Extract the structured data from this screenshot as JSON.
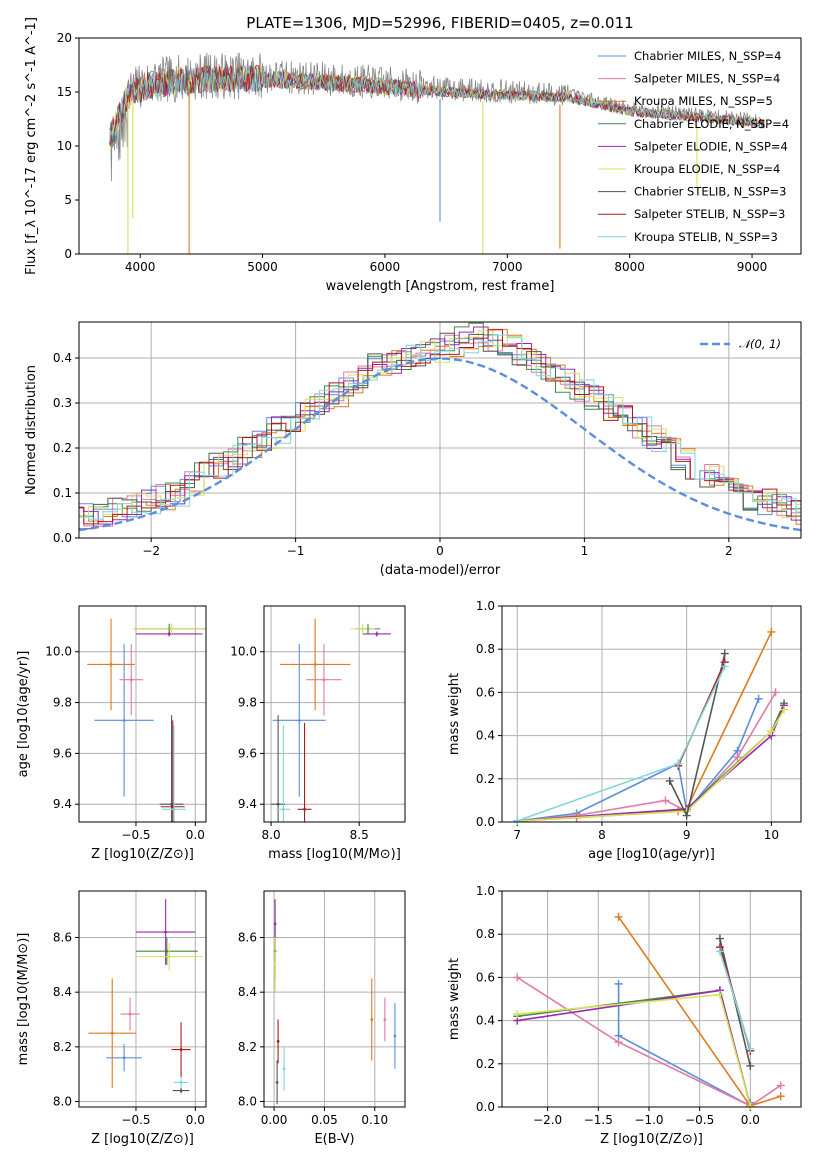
{
  "figure_title": "PLATE=1306, MJD=52996, FIBERID=0405, z=0.011",
  "colors": {
    "chabrier_miles": "#5b8fdc",
    "salpeter_miles": "#e07aa9",
    "kroupa_miles": "#e07a20",
    "chabrier_elodie": "#3f8a4a",
    "salpeter_elodie": "#9b28b0",
    "kroupa_elodie": "#d9e05a",
    "chabrier_stelib": "#555555",
    "salpeter_stelib": "#b01818",
    "kroupa_stelib": "#7fd6dc",
    "data_gray": "#888888",
    "normal_dashed": "#5b8fdc"
  },
  "chart_data": [
    {
      "type": "line",
      "title": "PLATE=1306, MJD=52996, FIBERID=0405, z=0.011",
      "xlabel": "wavelength [Angstrom, rest frame]",
      "ylabel": "Flux [f_λ 10^-17 erg cm^-2 s^-1 A^-1]",
      "xlim": [
        3500,
        9400
      ],
      "ylim": [
        0,
        20
      ],
      "xticks": [
        4000,
        5000,
        6000,
        7000,
        8000,
        9000
      ],
      "yticks": [
        0,
        5,
        10,
        15,
        20
      ],
      "legend_position": "upper-right",
      "series": [
        {
          "name": "Chabrier MILES, N_SSP=4",
          "color_key": "chabrier_miles"
        },
        {
          "name": "Salpeter MILES, N_SSP=4",
          "color_key": "salpeter_miles"
        },
        {
          "name": "Kroupa MILES, N_SSP=5",
          "color_key": "kroupa_miles"
        },
        {
          "name": "Chabrier ELODIE, N_SSP=4",
          "color_key": "chabrier_elodie"
        },
        {
          "name": "Salpeter ELODIE, N_SSP=4",
          "color_key": "salpeter_elodie"
        },
        {
          "name": "Kroupa ELODIE, N_SSP=4",
          "color_key": "kroupa_elodie"
        },
        {
          "name": "Chabrier STELIB, N_SSP=3",
          "color_key": "chabrier_stelib"
        },
        {
          "name": "Salpeter STELIB, N_SSP=3",
          "color_key": "salpeter_stelib"
        },
        {
          "name": "Kroupa STELIB, N_SSP=3",
          "color_key": "kroupa_stelib"
        }
      ],
      "continuum_trend": {
        "x": [
          3750,
          3900,
          4100,
          4500,
          5000,
          5500,
          6000,
          6500,
          7000,
          7500,
          8000,
          8500,
          9000,
          9100
        ],
        "y": [
          11,
          15,
          16,
          16.5,
          16.5,
          16.2,
          15.8,
          15.3,
          15,
          14.8,
          13.5,
          13,
          12.5,
          12.3
        ]
      },
      "absorption_spikes": [
        {
          "x": 3900,
          "y_min": 0,
          "color_key": "kroupa_elodie"
        },
        {
          "x": 3940,
          "y_min": 3.3,
          "color_key": "kroupa_elodie"
        },
        {
          "x": 4400,
          "y_min": 0,
          "color_key": "kroupa_miles"
        },
        {
          "x": 6450,
          "y_min": 3,
          "color_key": "chabrier_miles"
        },
        {
          "x": 6800,
          "y_min": 0,
          "color_key": "kroupa_elodie"
        },
        {
          "x": 7430,
          "y_min": 0.5,
          "color_key": "kroupa_miles"
        },
        {
          "x": 8550,
          "y_min": 6,
          "color_key": "kroupa_elodie"
        }
      ]
    },
    {
      "type": "step",
      "xlabel": "(data-model)/error",
      "ylabel": "Normed distribution",
      "xlim": [
        -2.5,
        2.5
      ],
      "ylim": [
        0,
        0.48
      ],
      "xticks": [
        -2,
        -1,
        0,
        1,
        2
      ],
      "yticks": [
        0.0,
        0.1,
        0.2,
        0.3,
        0.4
      ],
      "grid": true,
      "legend": [
        "𝒩(0, 1)"
      ],
      "legend_position": "upper-right",
      "bin_width": 0.1,
      "representative_histogram": [
        0.02,
        0.025,
        0.03,
        0.035,
        0.04,
        0.05,
        0.055,
        0.065,
        0.07,
        0.08,
        0.09,
        0.1,
        0.12,
        0.14,
        0.16,
        0.18,
        0.2,
        0.215,
        0.24,
        0.26,
        0.28,
        0.3,
        0.32,
        0.34,
        0.36,
        0.38,
        0.39,
        0.4,
        0.41,
        0.42,
        0.43,
        0.44,
        0.45,
        0.44,
        0.43,
        0.41,
        0.39,
        0.37,
        0.35,
        0.33,
        0.31,
        0.29,
        0.27,
        0.25,
        0.22,
        0.2,
        0.18,
        0.16,
        0.14,
        0.12,
        0.1,
        0.09,
        0.08,
        0.07,
        0.06,
        0.055,
        0.05,
        0.045,
        0.04,
        0.035
      ]
    },
    {
      "type": "scatter",
      "xlabel": "Z [log10(Z/Z⊙)]",
      "ylabel": "age [log10(age/yr)]",
      "xlim": [
        -0.98,
        0.09
      ],
      "ylim": [
        9.33,
        10.18
      ],
      "xticks": [
        -0.5,
        0.0
      ],
      "yticks": [
        9.4,
        9.6,
        9.8,
        10.0
      ],
      "grid": true,
      "points": [
        {
          "x": -0.6,
          "y": 9.73,
          "xerr": 0.25,
          "yerr": 0.3,
          "color_key": "chabrier_miles"
        },
        {
          "x": -0.54,
          "y": 9.89,
          "xerr": 0.1,
          "yerr": 0.14,
          "color_key": "salpeter_miles"
        },
        {
          "x": -0.71,
          "y": 9.95,
          "xerr": 0.2,
          "yerr": 0.18,
          "color_key": "kroupa_miles"
        },
        {
          "x": -0.22,
          "y": 10.09,
          "xerr": 0.3,
          "yerr": 0.02,
          "color_key": "chabrier_elodie"
        },
        {
          "x": -0.22,
          "y": 10.07,
          "xerr": 0.28,
          "yerr": 0.01,
          "color_key": "salpeter_elodie"
        },
        {
          "x": -0.2,
          "y": 10.09,
          "xerr": 0.32,
          "yerr": 0.02,
          "color_key": "kroupa_elodie"
        },
        {
          "x": -0.2,
          "y": 9.4,
          "xerr": 0.1,
          "yerr": 0.35,
          "color_key": "chabrier_stelib"
        },
        {
          "x": -0.19,
          "y": 9.39,
          "xerr": 0.1,
          "yerr": 0.34,
          "color_key": "salpeter_stelib"
        },
        {
          "x": -0.18,
          "y": 9.38,
          "xerr": 0.1,
          "yerr": 0.33,
          "color_key": "kroupa_stelib"
        }
      ]
    },
    {
      "type": "scatter",
      "xlabel": "mass [log10(M/M⊙)]",
      "ylabel": "",
      "xlim": [
        7.96,
        8.76
      ],
      "ylim": [
        9.33,
        10.18
      ],
      "xticks": [
        8.0,
        8.5
      ],
      "yticks": [
        9.4,
        9.6,
        9.8,
        10.0
      ],
      "grid": true,
      "points": [
        {
          "x": 8.16,
          "y": 9.73,
          "xerr": 0.15,
          "yerr": 0.3,
          "color_key": "chabrier_miles"
        },
        {
          "x": 8.3,
          "y": 9.89,
          "xerr": 0.1,
          "yerr": 0.14,
          "color_key": "salpeter_miles"
        },
        {
          "x": 8.25,
          "y": 9.95,
          "xerr": 0.2,
          "yerr": 0.18,
          "color_key": "kroupa_miles"
        },
        {
          "x": 8.55,
          "y": 10.09,
          "xerr": 0.07,
          "yerr": 0.02,
          "color_key": "chabrier_elodie"
        },
        {
          "x": 8.6,
          "y": 10.07,
          "xerr": 0.08,
          "yerr": 0.01,
          "color_key": "salpeter_elodie"
        },
        {
          "x": 8.52,
          "y": 10.09,
          "xerr": 0.07,
          "yerr": 0.02,
          "color_key": "kroupa_elodie"
        },
        {
          "x": 8.04,
          "y": 9.4,
          "xerr": 0.04,
          "yerr": 0.35,
          "color_key": "chabrier_stelib"
        },
        {
          "x": 8.19,
          "y": 9.38,
          "xerr": 0.04,
          "yerr": 0.34,
          "color_key": "salpeter_stelib"
        },
        {
          "x": 8.07,
          "y": 9.38,
          "xerr": 0.04,
          "yerr": 0.33,
          "color_key": "kroupa_stelib"
        }
      ]
    },
    {
      "type": "line",
      "xlabel": "age [log10(age/yr)]",
      "ylabel": "mass weight",
      "xlim": [
        6.82,
        10.35
      ],
      "ylim": [
        0,
        1.0
      ],
      "xticks": [
        7,
        8,
        9,
        10
      ],
      "yticks": [
        0.0,
        0.2,
        0.4,
        0.6,
        0.8,
        1.0
      ],
      "grid": true,
      "series": [
        {
          "color_key": "chabrier_miles",
          "x": [
            7.0,
            7.7,
            8.9,
            9.0,
            9.6,
            9.85
          ],
          "y": [
            0.005,
            0.04,
            0.27,
            0.05,
            0.33,
            0.57
          ]
        },
        {
          "color_key": "salpeter_miles",
          "x": [
            7.0,
            7.7,
            8.75,
            9.0,
            9.6,
            10.05
          ],
          "y": [
            0.005,
            0.03,
            0.1,
            0.05,
            0.3,
            0.6
          ]
        },
        {
          "color_key": "kroupa_miles",
          "x": [
            7.0,
            7.7,
            8.9,
            9.0,
            10.0
          ],
          "y": [
            0.005,
            0.02,
            0.05,
            0.06,
            0.88
          ]
        },
        {
          "color_key": "chabrier_elodie",
          "x": [
            7.0,
            9.0,
            10.0,
            10.15
          ],
          "y": [
            0.005,
            0.06,
            0.42,
            0.55
          ]
        },
        {
          "color_key": "salpeter_elodie",
          "x": [
            7.0,
            9.0,
            10.0,
            10.15
          ],
          "y": [
            0.005,
            0.06,
            0.4,
            0.54
          ]
        },
        {
          "color_key": "kroupa_elodie",
          "x": [
            7.0,
            9.0,
            10.0,
            10.15
          ],
          "y": [
            0.005,
            0.05,
            0.42,
            0.52
          ]
        },
        {
          "color_key": "chabrier_stelib",
          "x": [
            8.8,
            9.0,
            9.45
          ],
          "y": [
            0.19,
            0.03,
            0.78
          ]
        },
        {
          "color_key": "salpeter_stelib",
          "x": [
            8.9,
            9.45
          ],
          "y": [
            0.26,
            0.74
          ]
        },
        {
          "color_key": "kroupa_stelib",
          "x": [
            7.0,
            8.9,
            9.45
          ],
          "y": [
            0.005,
            0.27,
            0.72
          ]
        }
      ]
    },
    {
      "type": "scatter",
      "xlabel": "Z [log10(Z/Z⊙)]",
      "ylabel": "mass [log10(M/M⊙)]",
      "xlim": [
        -0.98,
        0.09
      ],
      "ylim": [
        7.98,
        8.77
      ],
      "xticks": [
        -0.5,
        0.0
      ],
      "yticks": [
        8.0,
        8.2,
        8.4,
        8.6
      ],
      "grid": true,
      "points": [
        {
          "x": -0.6,
          "y": 8.16,
          "xerr": 0.15,
          "yerr": 0.05,
          "color_key": "chabrier_miles"
        },
        {
          "x": -0.55,
          "y": 8.32,
          "xerr": 0.08,
          "yerr": 0.06,
          "color_key": "salpeter_miles"
        },
        {
          "x": -0.7,
          "y": 8.25,
          "xerr": 0.2,
          "yerr": 0.2,
          "color_key": "kroupa_miles"
        },
        {
          "x": -0.24,
          "y": 8.55,
          "xerr": 0.26,
          "yerr": 0.05,
          "color_key": "chabrier_elodie"
        },
        {
          "x": -0.25,
          "y": 8.62,
          "xerr": 0.25,
          "yerr": 0.12,
          "color_key": "salpeter_elodie"
        },
        {
          "x": -0.22,
          "y": 8.53,
          "xerr": 0.28,
          "yerr": 0.05,
          "color_key": "kroupa_elodie"
        },
        {
          "x": -0.12,
          "y": 8.04,
          "xerr": 0.07,
          "yerr": 0.01,
          "color_key": "chabrier_stelib"
        },
        {
          "x": -0.12,
          "y": 8.19,
          "xerr": 0.08,
          "yerr": 0.1,
          "color_key": "salpeter_stelib"
        },
        {
          "x": -0.12,
          "y": 8.07,
          "xerr": 0.06,
          "yerr": 0.02,
          "color_key": "kroupa_stelib"
        }
      ]
    },
    {
      "type": "scatter",
      "xlabel": "E(B-V)",
      "ylabel": "",
      "xlim": [
        -0.01,
        0.13
      ],
      "ylim": [
        7.98,
        8.77
      ],
      "xticks": [
        0.0,
        0.05,
        0.1
      ],
      "yticks": [
        8.0,
        8.2,
        8.4,
        8.6
      ],
      "grid": true,
      "points": [
        {
          "x": 0.12,
          "y": 8.24,
          "xerr": 0,
          "yerr": 0.12,
          "color_key": "chabrier_miles"
        },
        {
          "x": 0.11,
          "y": 8.3,
          "xerr": 0,
          "yerr": 0.08,
          "color_key": "salpeter_miles"
        },
        {
          "x": 0.097,
          "y": 8.3,
          "xerr": 0,
          "yerr": 0.15,
          "color_key": "kroupa_miles"
        },
        {
          "x": 0.001,
          "y": 8.55,
          "xerr": 0,
          "yerr": 0.1,
          "color_key": "chabrier_elodie"
        },
        {
          "x": 0.001,
          "y": 8.65,
          "xerr": 0,
          "yerr": 0.09,
          "color_key": "salpeter_elodie"
        },
        {
          "x": 0.001,
          "y": 8.5,
          "xerr": 0,
          "yerr": 0.1,
          "color_key": "kroupa_elodie"
        },
        {
          "x": 0.003,
          "y": 8.07,
          "xerr": 0,
          "yerr": 0.08,
          "color_key": "chabrier_stelib"
        },
        {
          "x": 0.004,
          "y": 8.22,
          "xerr": 0,
          "yerr": 0.08,
          "color_key": "salpeter_stelib"
        },
        {
          "x": 0.01,
          "y": 8.12,
          "xerr": 0,
          "yerr": 0.08,
          "color_key": "kroupa_stelib"
        }
      ]
    },
    {
      "type": "line",
      "xlabel": "Z [log10(Z/Z⊙)]",
      "ylabel": "mass weight",
      "xlim": [
        -2.45,
        0.5
      ],
      "ylim": [
        0,
        1.0
      ],
      "xticks": [
        -2.0,
        -1.5,
        -1.0,
        -0.5,
        0.0
      ],
      "yticks": [
        0.0,
        0.2,
        0.4,
        0.6,
        0.8,
        1.0
      ],
      "grid": true,
      "series": [
        {
          "color_key": "chabrier_miles",
          "x": [
            -1.3,
            -1.3,
            0.0,
            0.0
          ],
          "y": [
            0.57,
            0.33,
            0.005,
            0.02
          ]
        },
        {
          "color_key": "salpeter_miles",
          "x": [
            -2.3,
            -1.3,
            0.0,
            0.3
          ],
          "y": [
            0.6,
            0.3,
            0.005,
            0.1
          ]
        },
        {
          "color_key": "kroupa_miles",
          "x": [
            -1.3,
            0.0,
            0.3
          ],
          "y": [
            0.88,
            0.005,
            0.05
          ]
        },
        {
          "color_key": "chabrier_elodie",
          "x": [
            -2.3,
            -0.3,
            0.0
          ],
          "y": [
            0.42,
            0.54,
            0.005
          ]
        },
        {
          "color_key": "salpeter_elodie",
          "x": [
            -2.3,
            -0.3,
            0.0
          ],
          "y": [
            0.4,
            0.54,
            0.005
          ]
        },
        {
          "color_key": "kroupa_elodie",
          "x": [
            -2.3,
            -0.3,
            0.0
          ],
          "y": [
            0.43,
            0.52,
            0.005
          ]
        },
        {
          "color_key": "chabrier_stelib",
          "x": [
            -0.3,
            0.0
          ],
          "y": [
            0.78,
            0.19
          ]
        },
        {
          "color_key": "salpeter_stelib",
          "x": [
            -0.3,
            0.0
          ],
          "y": [
            0.74,
            0.26
          ]
        },
        {
          "color_key": "kroupa_stelib",
          "x": [
            -0.3,
            0.0
          ],
          "y": [
            0.72,
            0.27
          ]
        }
      ]
    }
  ]
}
